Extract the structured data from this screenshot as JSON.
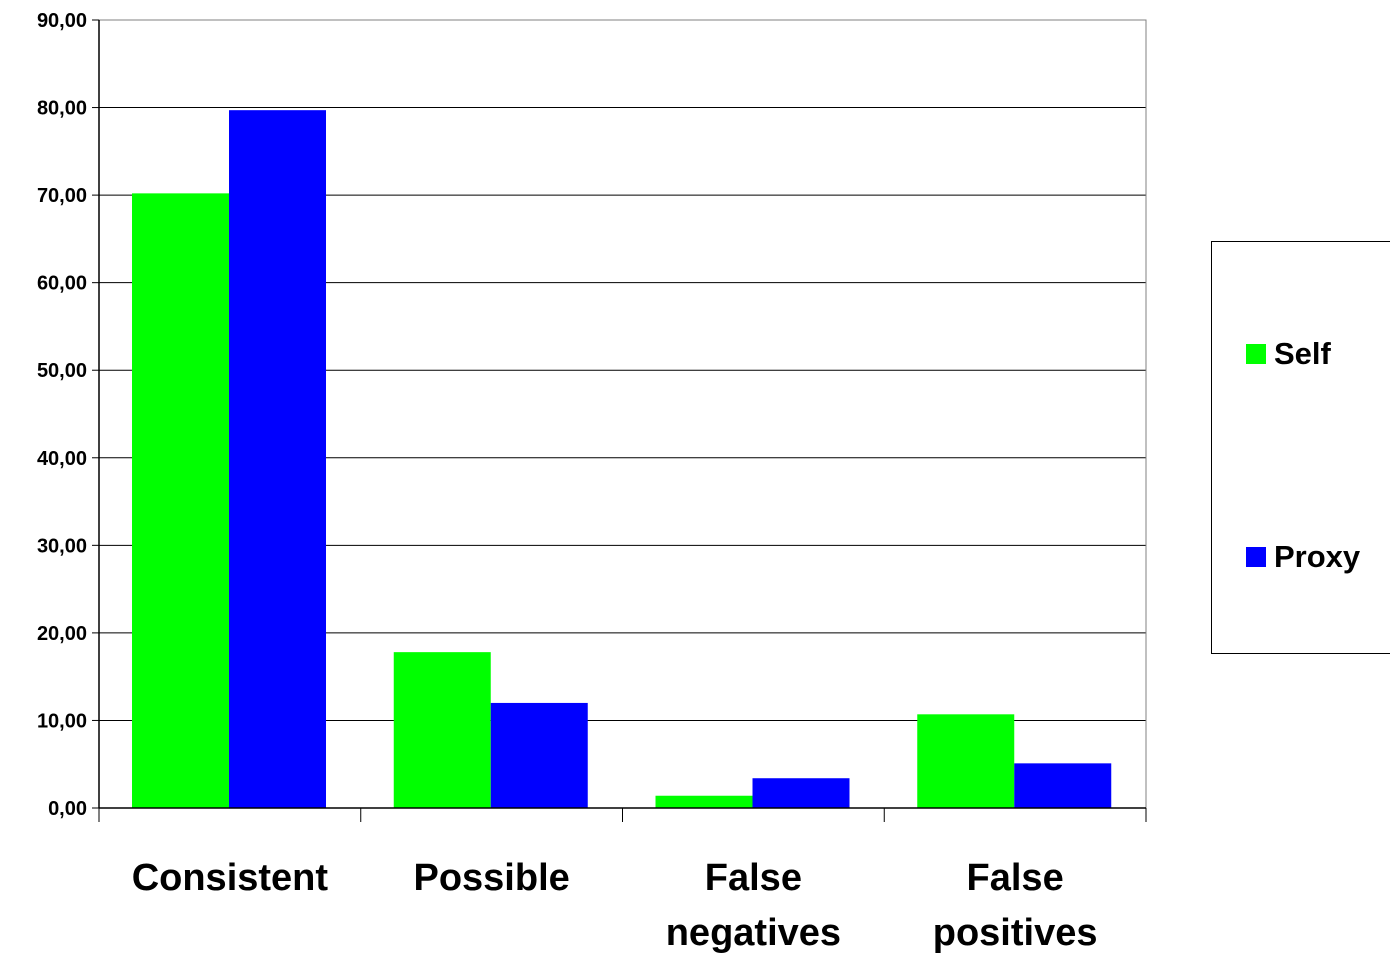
{
  "chart_data": {
    "type": "bar",
    "categories": [
      [
        "Consistent"
      ],
      [
        "Possible"
      ],
      [
        "False",
        "negatives"
      ],
      [
        "False",
        "positives"
      ]
    ],
    "series": [
      {
        "name": "Self",
        "color": "#00ff00",
        "values": [
          70.2,
          17.8,
          1.4,
          10.7
        ]
      },
      {
        "name": "Proxy",
        "color": "#0000ff",
        "values": [
          79.7,
          12.0,
          3.4,
          5.1
        ]
      }
    ],
    "ylim": [
      0,
      90
    ],
    "yticks": [
      "0,00",
      "10,00",
      "20,00",
      "30,00",
      "40,00",
      "50,00",
      "60,00",
      "70,00",
      "80,00",
      "90,00"
    ],
    "grid": true,
    "legend_position": "right"
  }
}
